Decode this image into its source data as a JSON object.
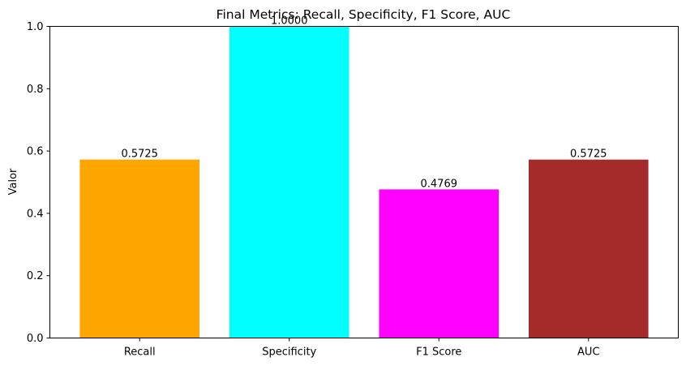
{
  "chart_data": {
    "type": "bar",
    "title": "Final Metrics: Recall, Specificity, F1 Score, AUC",
    "xlabel": "",
    "ylabel": "Valor",
    "categories": [
      "Recall",
      "Specificity",
      "F1 Score",
      "AUC"
    ],
    "values": [
      0.5725,
      1.0,
      0.4769,
      0.5725
    ],
    "value_labels": [
      "0.5725",
      "1.0000",
      "0.4769",
      "0.5725"
    ],
    "colors": [
      "#ffa500",
      "#00ffff",
      "#ff00ff",
      "#a52a2a"
    ],
    "ylim": [
      0,
      1.0
    ],
    "yticks": [
      0.0,
      0.2,
      0.4,
      0.6,
      0.8,
      1.0
    ],
    "ytick_labels": [
      "0.0",
      "0.2",
      "0.4",
      "0.6",
      "0.8",
      "1.0"
    ],
    "grid": false,
    "legend": "none"
  }
}
